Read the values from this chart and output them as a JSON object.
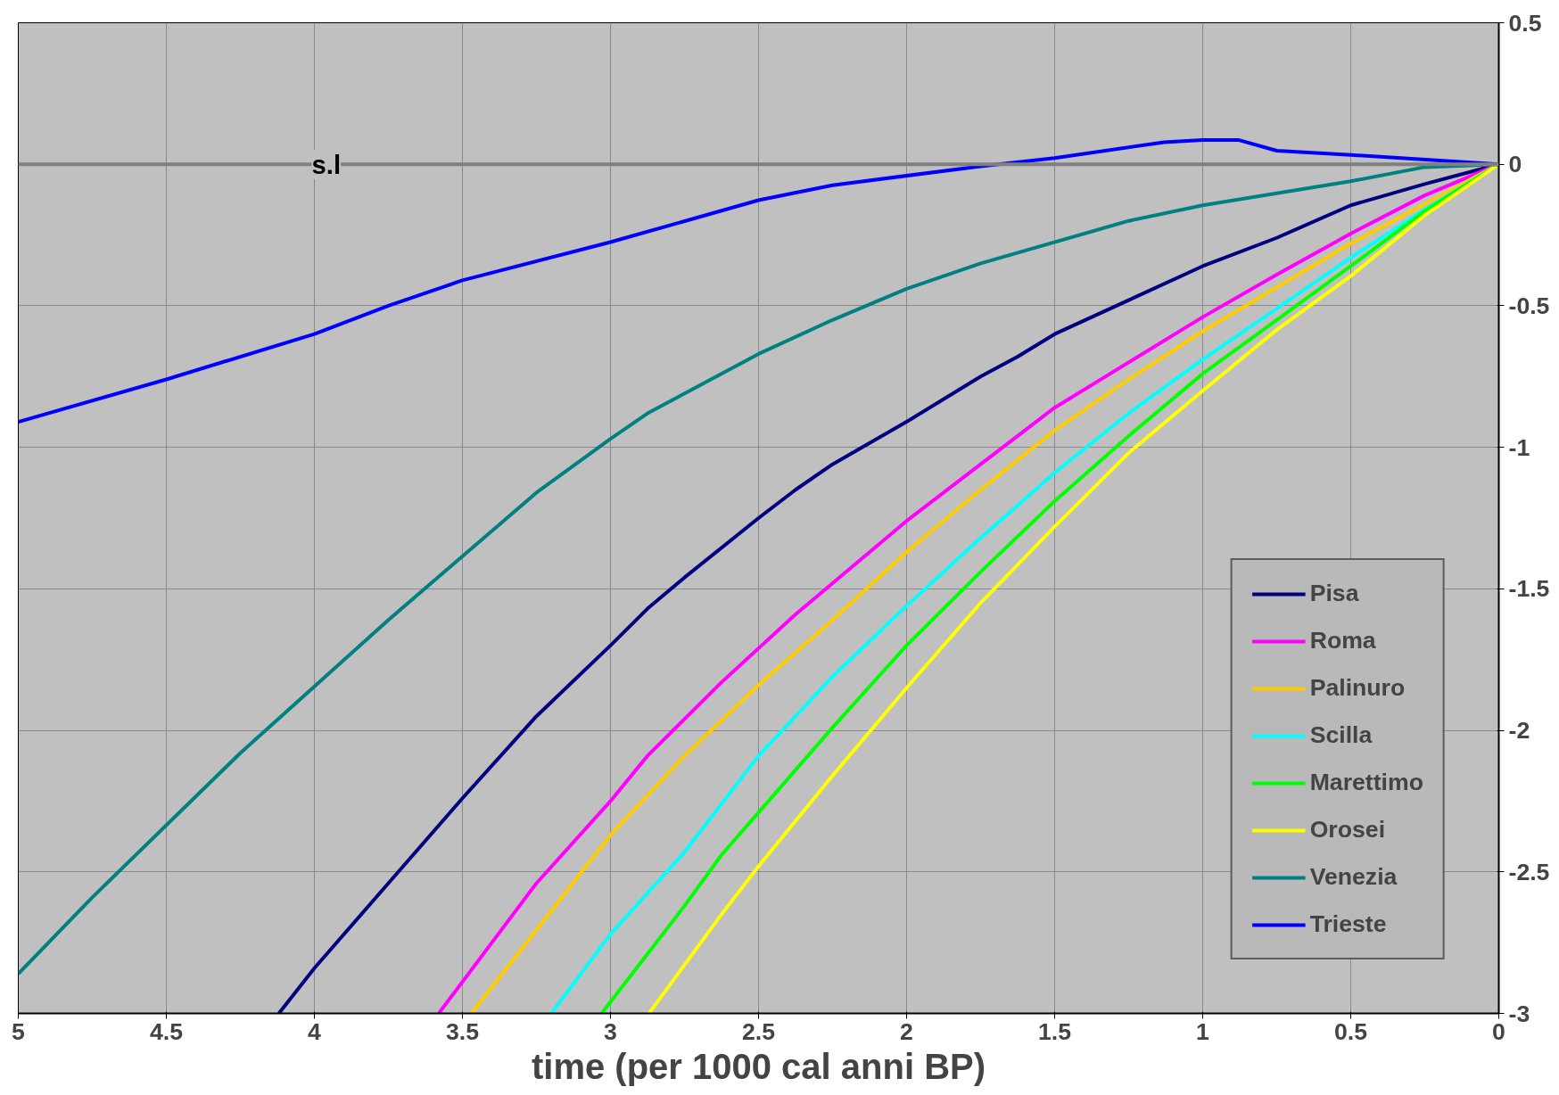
{
  "chart_data": {
    "type": "line",
    "xlabel": "time (per 1000 cal anni BP)",
    "xlim": [
      5,
      0
    ],
    "xticks": [
      5,
      4.5,
      4,
      3.5,
      3,
      2.5,
      2,
      1.5,
      1,
      0.5,
      0
    ],
    "ylim": [
      -3,
      0.5
    ],
    "yticks": [
      -3,
      -2.5,
      -2,
      -1.5,
      -1,
      -0.5,
      0,
      0.5
    ],
    "grid": true,
    "legend": "bottom right",
    "marker": "none",
    "line_style": "solid",
    "ref_lines": [
      {
        "axis": "y",
        "value": 0,
        "label": "s.l",
        "color": "#808080"
      }
    ],
    "series": [
      {
        "name": "Pisa",
        "color": "#000080",
        "x": [
          4.12,
          4.0,
          3.75,
          3.5,
          3.25,
          3.0,
          2.875,
          2.75,
          2.5,
          2.375,
          2.25,
          2.0,
          1.75,
          1.625,
          1.5,
          1.25,
          1.0,
          0.75,
          0.5,
          0.25,
          0
        ],
        "values": [
          -3,
          -2.84,
          -2.54,
          -2.24,
          -1.95,
          -1.7,
          -1.57,
          -1.46,
          -1.25,
          -1.15,
          -1.06,
          -0.91,
          -0.75,
          -0.68,
          -0.6,
          -0.48,
          -0.36,
          -0.26,
          -0.145,
          -0.07,
          0
        ]
      },
      {
        "name": "Roma",
        "color": "#ff00ff",
        "x": [
          3.58,
          3.25,
          3.0,
          2.875,
          2.625,
          2.375,
          2.0,
          1.75,
          1.5,
          1.25,
          1.0,
          0.75,
          0.5,
          0.25,
          0
        ],
        "values": [
          -3,
          -2.54,
          -2.25,
          -2.09,
          -1.83,
          -1.59,
          -1.26,
          -1.06,
          -0.86,
          -0.7,
          -0.54,
          -0.39,
          -0.245,
          -0.11,
          0
        ]
      },
      {
        "name": "Palinuro",
        "color": "#ffcc00",
        "x": [
          3.47,
          3.0,
          2.75,
          2.5,
          2.25,
          2.0,
          1.75,
          1.5,
          1.25,
          1.0,
          0.75,
          0.5,
          0.25,
          0
        ],
        "values": [
          -3,
          -2.37,
          -2.09,
          -1.84,
          -1.61,
          -1.37,
          -1.15,
          -0.94,
          -0.76,
          -0.59,
          -0.435,
          -0.28,
          -0.14,
          0
        ]
      },
      {
        "name": "Scilla",
        "color": "#00ffff",
        "x": [
          3.2,
          3.0,
          2.75,
          2.5,
          2.25,
          2.0,
          1.75,
          1.5,
          1.25,
          1.0,
          0.75,
          0.5,
          0.25,
          0
        ],
        "values": [
          -3,
          -2.72,
          -2.43,
          -2.09,
          -1.81,
          -1.56,
          -1.32,
          -1.09,
          -0.88,
          -0.69,
          -0.51,
          -0.33,
          -0.16,
          0
        ]
      },
      {
        "name": "Marettimo",
        "color": "#00ff00",
        "x": [
          3.03,
          2.75,
          2.625,
          2.5,
          2.25,
          2.0,
          1.75,
          1.5,
          1.25,
          1.0,
          0.75,
          0.5,
          0.25,
          0
        ],
        "values": [
          -3,
          -2.62,
          -2.44,
          -2.29,
          -1.99,
          -1.7,
          -1.44,
          -1.19,
          -0.96,
          -0.74,
          -0.55,
          -0.36,
          -0.165,
          0
        ]
      },
      {
        "name": "Orosei",
        "color": "#ffff00",
        "x": [
          2.87,
          2.625,
          2.5,
          2.25,
          2.0,
          1.75,
          1.5,
          1.25,
          1.0,
          0.75,
          0.5,
          0.25,
          0
        ],
        "values": [
          -3,
          -2.65,
          -2.48,
          -2.16,
          -1.85,
          -1.55,
          -1.28,
          -1.02,
          -0.8,
          -0.585,
          -0.395,
          -0.18,
          0
        ]
      },
      {
        "name": "Venezia",
        "color": "#008080",
        "x": [
          5,
          4.75,
          4.25,
          3.75,
          3.25,
          3.0,
          2.875,
          2.5,
          2.25,
          2.0,
          1.75,
          1.25,
          1.0,
          0.5,
          0.25,
          0
        ],
        "values": [
          -2.86,
          -2.59,
          -2.08,
          -1.61,
          -1.16,
          -0.97,
          -0.88,
          -0.67,
          -0.55,
          -0.44,
          -0.35,
          -0.2,
          -0.145,
          -0.06,
          -0.01,
          0
        ]
      },
      {
        "name": "Trieste",
        "color": "#0000ff",
        "x": [
          5,
          4.5,
          4.0,
          3.75,
          3.5,
          3.0,
          2.5,
          2.25,
          1.75,
          1.5,
          1.13,
          1.0,
          0.88,
          0.75,
          0.5,
          0
        ],
        "values": [
          -0.91,
          -0.76,
          -0.6,
          -0.5,
          -0.41,
          -0.275,
          -0.127,
          -0.074,
          -0.007,
          0.022,
          0.078,
          0.086,
          0.086,
          0.048,
          0.033,
          0
        ]
      }
    ]
  }
}
